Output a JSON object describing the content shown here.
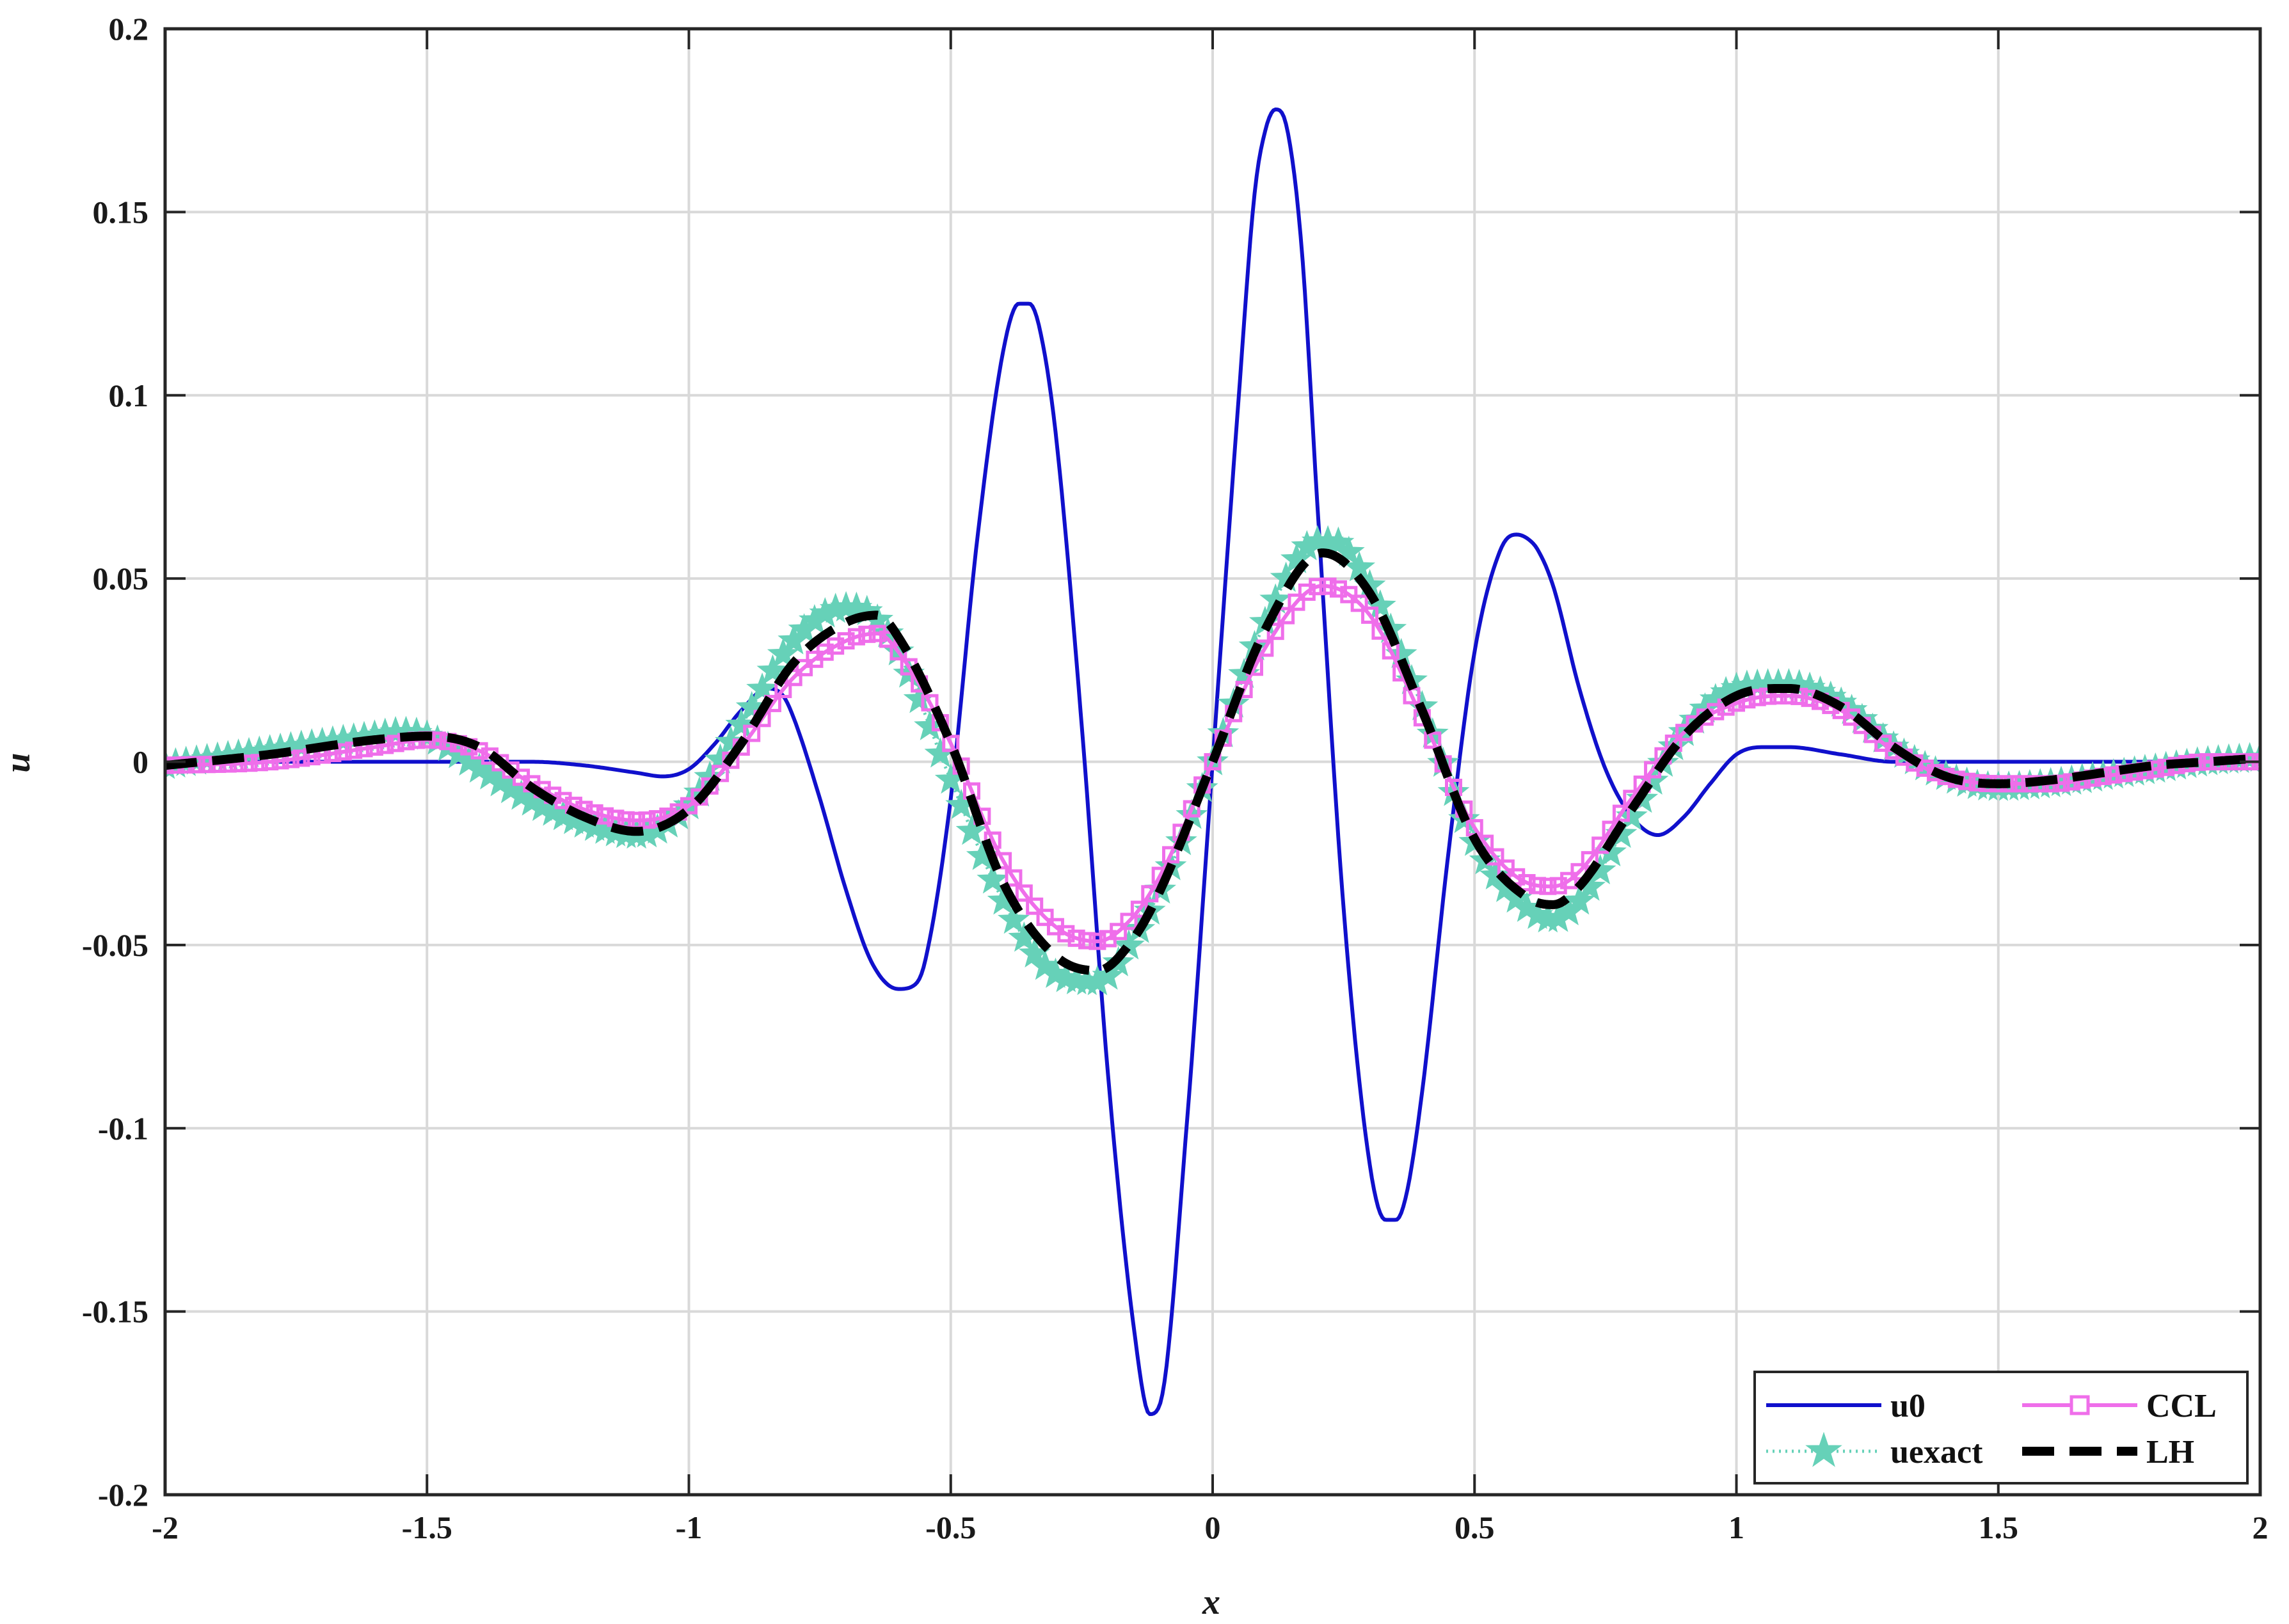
{
  "chart_data": {
    "type": "line",
    "xlabel": "x",
    "ylabel": "u",
    "xlim": [
      -2,
      2
    ],
    "ylim": [
      -0.2,
      0.2
    ],
    "grid": true,
    "legend_position": "bottom-right",
    "xticks": [
      -2,
      -1.5,
      -1,
      -0.5,
      0,
      0.5,
      1,
      1.5,
      2
    ],
    "xtick_labels": [
      "-2",
      "-1.5",
      "-1",
      "-0.5",
      "0",
      "0.5",
      "1",
      "1.5",
      "2"
    ],
    "yticks": [
      0.2,
      0.15,
      0.1,
      0.05,
      0,
      -0.05,
      -0.1,
      -0.15,
      -0.2
    ],
    "ytick_labels": [
      "0.2",
      "0.15",
      "0.1",
      "0.05",
      "0",
      "-0.05",
      "-0.1",
      "-0.15",
      "-0.2"
    ],
    "series": [
      {
        "name": "u0",
        "color": "#1010cc",
        "style": "solid",
        "marker": "none",
        "x": [
          -2.0,
          -1.8,
          -1.6,
          -1.4,
          -1.3,
          -1.2,
          -1.1,
          -1.05,
          -1.0,
          -0.95,
          -0.9,
          -0.85,
          -0.82,
          -0.8,
          -0.75,
          -0.7,
          -0.65,
          -0.6,
          -0.57,
          -0.55,
          -0.5,
          -0.45,
          -0.4,
          -0.37,
          -0.35,
          -0.33,
          -0.3,
          -0.25,
          -0.2,
          -0.15,
          -0.12,
          -0.1,
          -0.05,
          0.0,
          0.05,
          0.08,
          0.1,
          0.12,
          0.14,
          0.17,
          0.2,
          0.25,
          0.3,
          0.33,
          0.35,
          0.37,
          0.4,
          0.45,
          0.5,
          0.55,
          0.58,
          0.6,
          0.62,
          0.65,
          0.7,
          0.75,
          0.8,
          0.85,
          0.9,
          0.95,
          1.0,
          1.05,
          1.1,
          1.2,
          1.3,
          1.4,
          1.5,
          1.7,
          2.0
        ],
        "y": [
          0.0,
          0.0,
          0.0,
          0.0,
          0.0,
          -0.001,
          -0.003,
          -0.004,
          -0.002,
          0.005,
          0.014,
          0.02,
          0.018,
          0.012,
          -0.01,
          -0.035,
          -0.055,
          -0.062,
          -0.061,
          -0.055,
          -0.01,
          0.06,
          0.112,
          0.125,
          0.125,
          0.118,
          0.09,
          0.01,
          -0.085,
          -0.155,
          -0.178,
          -0.175,
          -0.1,
          0.0,
          0.1,
          0.155,
          0.172,
          0.178,
          0.174,
          0.14,
          0.07,
          -0.04,
          -0.11,
          -0.125,
          -0.125,
          -0.118,
          -0.09,
          -0.025,
          0.03,
          0.058,
          0.062,
          0.061,
          0.058,
          0.048,
          0.02,
          -0.002,
          -0.015,
          -0.02,
          -0.015,
          -0.006,
          0.002,
          0.004,
          0.004,
          0.002,
          0.0,
          0.0,
          0.0,
          0.0,
          0.0
        ]
      },
      {
        "name": "uexact",
        "color": "#66d1b8",
        "style": "dotted",
        "marker": "star",
        "x": [
          -2.0,
          -1.8,
          -1.6,
          -1.55,
          -1.5,
          -1.4,
          -1.3,
          -1.2,
          -1.1,
          -1.0,
          -0.9,
          -0.8,
          -0.7,
          -0.65,
          -0.6,
          -0.5,
          -0.4,
          -0.3,
          -0.22,
          -0.15,
          -0.1,
          0.0,
          0.1,
          0.2,
          0.23,
          0.3,
          0.4,
          0.5,
          0.6,
          0.65,
          0.7,
          0.8,
          0.9,
          1.0,
          1.08,
          1.1,
          1.2,
          1.3,
          1.4,
          1.5,
          1.6,
          1.7,
          1.8,
          1.9,
          2.0
        ],
        "y": [
          -0.001,
          0.003,
          0.007,
          0.008,
          0.007,
          -0.002,
          -0.011,
          -0.017,
          -0.02,
          -0.012,
          0.01,
          0.033,
          0.042,
          0.04,
          0.03,
          -0.005,
          -0.038,
          -0.058,
          -0.06,
          -0.048,
          -0.035,
          0.0,
          0.038,
          0.06,
          0.06,
          0.048,
          0.015,
          -0.022,
          -0.04,
          -0.043,
          -0.038,
          -0.015,
          0.008,
          0.02,
          0.021,
          0.021,
          0.016,
          0.004,
          -0.004,
          -0.007,
          -0.006,
          -0.004,
          -0.002,
          0.0,
          0.001
        ]
      },
      {
        "name": "CCL",
        "color": "#ef6eea",
        "style": "solid",
        "marker": "square",
        "x": [
          -2.0,
          -1.8,
          -1.6,
          -1.5,
          -1.4,
          -1.3,
          -1.2,
          -1.1,
          -1.0,
          -0.9,
          -0.8,
          -0.7,
          -0.64,
          -0.6,
          -0.5,
          -0.4,
          -0.3,
          -0.22,
          -0.15,
          -0.1,
          0.0,
          0.1,
          0.21,
          0.3,
          0.4,
          0.5,
          0.6,
          0.65,
          0.7,
          0.8,
          0.9,
          1.0,
          1.08,
          1.1,
          1.2,
          1.3,
          1.4,
          1.5,
          1.6,
          1.7,
          1.8,
          1.9,
          2.0
        ],
        "y": [
          -0.001,
          0.0,
          0.004,
          0.006,
          0.003,
          -0.006,
          -0.013,
          -0.016,
          -0.012,
          0.004,
          0.023,
          0.033,
          0.035,
          0.03,
          0.005,
          -0.027,
          -0.045,
          -0.049,
          -0.042,
          -0.031,
          0.0,
          0.031,
          0.048,
          0.04,
          0.012,
          -0.018,
          -0.033,
          -0.034,
          -0.03,
          -0.01,
          0.008,
          0.016,
          0.018,
          0.018,
          0.014,
          0.003,
          -0.004,
          -0.006,
          -0.006,
          -0.004,
          -0.002,
          0.0,
          0.0
        ]
      },
      {
        "name": "LH",
        "color": "#000000",
        "style": "dashed",
        "marker": "none",
        "x": [
          -2.0,
          -1.8,
          -1.6,
          -1.5,
          -1.4,
          -1.3,
          -1.2,
          -1.1,
          -1.0,
          -0.9,
          -0.8,
          -0.7,
          -0.64,
          -0.6,
          -0.5,
          -0.4,
          -0.3,
          -0.22,
          -0.15,
          -0.1,
          0.0,
          0.1,
          0.21,
          0.3,
          0.4,
          0.5,
          0.6,
          0.65,
          0.7,
          0.8,
          0.9,
          1.0,
          1.08,
          1.1,
          1.2,
          1.3,
          1.4,
          1.5,
          1.6,
          1.7,
          1.8,
          1.9,
          2.0
        ],
        "y": [
          -0.001,
          0.002,
          0.006,
          0.007,
          0.004,
          -0.007,
          -0.015,
          -0.019,
          -0.013,
          0.005,
          0.027,
          0.038,
          0.04,
          0.034,
          0.005,
          -0.033,
          -0.053,
          -0.057,
          -0.048,
          -0.035,
          0.0,
          0.036,
          0.057,
          0.046,
          0.014,
          -0.021,
          -0.037,
          -0.039,
          -0.034,
          -0.013,
          0.007,
          0.018,
          0.02,
          0.02,
          0.015,
          0.004,
          -0.004,
          -0.006,
          -0.005,
          -0.003,
          -0.001,
          0.0,
          0.001
        ]
      }
    ]
  }
}
